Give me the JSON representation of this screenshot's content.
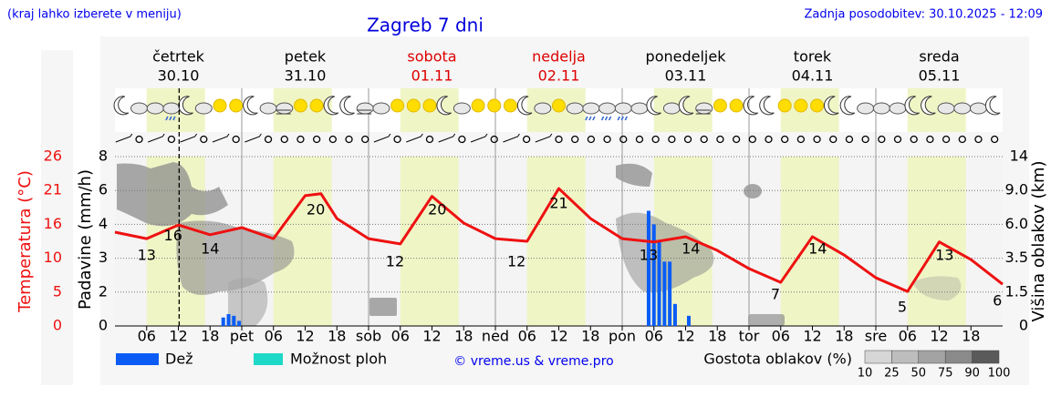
{
  "header": {
    "note": "(kraj lahko izberete v meniju)",
    "title": "Zagreb 7 dni",
    "updated": "Zadnja posodobitev: 30.10.2025 - 12:09"
  },
  "chart_data": {
    "type": "meteogram",
    "days": [
      {
        "name": "četrtek",
        "date": "30.10",
        "color": "#000000"
      },
      {
        "name": "petek",
        "date": "31.10",
        "color": "#000000"
      },
      {
        "name": "sobota",
        "date": "01.11",
        "color": "#dd0000"
      },
      {
        "name": "nedelja",
        "date": "02.11",
        "color": "#dd0000"
      },
      {
        "name": "ponedeljek",
        "date": "03.11",
        "color": "#000000"
      },
      {
        "name": "torek",
        "date": "04.11",
        "color": "#000000"
      },
      {
        "name": "sreda",
        "date": "05.11",
        "color": "#000000"
      }
    ],
    "xlim": [
      0,
      168
    ],
    "xticks": [
      {
        "value": 6,
        "label": "06"
      },
      {
        "value": 12,
        "label": "12"
      },
      {
        "value": 18,
        "label": "18"
      },
      {
        "value": 24,
        "label": "pet"
      },
      {
        "value": 30,
        "label": "06"
      },
      {
        "value": 36,
        "label": "12"
      },
      {
        "value": 42,
        "label": "18"
      },
      {
        "value": 48,
        "label": "sob"
      },
      {
        "value": 54,
        "label": "06"
      },
      {
        "value": 60,
        "label": "12"
      },
      {
        "value": 66,
        "label": "18"
      },
      {
        "value": 72,
        "label": "ned"
      },
      {
        "value": 78,
        "label": "06"
      },
      {
        "value": 84,
        "label": "12"
      },
      {
        "value": 90,
        "label": "18"
      },
      {
        "value": 96,
        "label": "pon"
      },
      {
        "value": 102,
        "label": "06"
      },
      {
        "value": 108,
        "label": "12"
      },
      {
        "value": 114,
        "label": "18"
      },
      {
        "value": 120,
        "label": "tor"
      },
      {
        "value": 126,
        "label": "06"
      },
      {
        "value": 132,
        "label": "12"
      },
      {
        "value": 138,
        "label": "18"
      },
      {
        "value": 144,
        "label": "sre"
      },
      {
        "value": 150,
        "label": "06"
      },
      {
        "value": 156,
        "label": "12"
      },
      {
        "value": 162,
        "label": "18"
      }
    ],
    "now": 12.15,
    "temperature": {
      "label": "Temperatura (°C)",
      "color": "#ee1111",
      "ylim": [
        0,
        26
      ],
      "yticks": [
        0,
        {
          "value": 5.2,
          "label": "5"
        },
        {
          "value": 10.4,
          "label": "10"
        },
        {
          "value": 15.6,
          "label": "16"
        },
        {
          "value": 20.8,
          "label": "21"
        },
        26
      ],
      "x": [
        0,
        6,
        12,
        18,
        24,
        30,
        36,
        39,
        42,
        48,
        54,
        60,
        66,
        72,
        78,
        84,
        90,
        96,
        102,
        108,
        114,
        120,
        126,
        132,
        138,
        144,
        150,
        156,
        162,
        168
      ],
      "values": [
        14.4,
        13.4,
        15.5,
        14,
        15.1,
        13.4,
        20,
        20.3,
        16.5,
        13.4,
        12.6,
        19.9,
        15.8,
        13.4,
        13,
        21.1,
        16.5,
        13.4,
        12.9,
        13.7,
        11.6,
        8.8,
        6.7,
        13.7,
        10.9,
        7.4,
        5.3,
        12.9,
        10.2,
        6.4
      ],
      "labels": [
        {
          "x": 6,
          "value": 13
        },
        {
          "x": 11,
          "value": 16
        },
        {
          "x": 18,
          "value": 14
        },
        {
          "x": 38,
          "value": 20
        },
        {
          "x": 53,
          "value": 12
        },
        {
          "x": 61,
          "value": 20
        },
        {
          "x": 76,
          "value": 12
        },
        {
          "x": 84,
          "value": 21
        },
        {
          "x": 101,
          "value": 13
        },
        {
          "x": 109,
          "value": 14
        },
        {
          "x": 125,
          "value": 7
        },
        {
          "x": 133,
          "value": 14
        },
        {
          "x": 149,
          "value": 5
        },
        {
          "x": 157,
          "value": 13
        },
        {
          "x": 167,
          "value": 6
        }
      ]
    },
    "precipitation": {
      "label": "Padavine (mm/h)",
      "name": "Dež",
      "color": "#0a5cf5",
      "yticks": [
        0,
        2,
        3,
        4,
        6,
        8
      ],
      "x": [
        20.5,
        21.5,
        22.5,
        23.5,
        101,
        102,
        103,
        104,
        105,
        106,
        108.6
      ],
      "values": [
        0.5,
        0.7,
        0.6,
        0.3,
        4.8,
        4.0,
        3.5,
        2.9,
        2.9,
        1.3,
        0.6
      ]
    },
    "showers": {
      "name": "Možnost ploh",
      "color": "#1ed8c8"
    },
    "cloud_height": {
      "label": "Višina oblakov (km)",
      "yticks": [
        0,
        1.5,
        3.5,
        {
          "value": 6,
          "label": "6.0"
        },
        {
          "value": 9,
          "label": "9.0"
        },
        14
      ]
    },
    "cloud_density": {
      "label": "Gostota oblakov (%)",
      "scale": [
        10,
        25,
        50,
        75,
        90,
        100
      ],
      "colors": [
        "#d6d6d6",
        "#bdbdbd",
        "#a3a3a3",
        "#8a8a8a",
        "#5a5a5a"
      ]
    },
    "credit": "© vreme.us & vreme.pro"
  }
}
